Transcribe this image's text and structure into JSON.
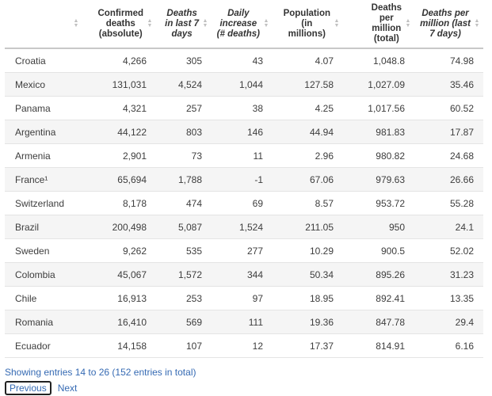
{
  "table": {
    "headers": [
      {
        "label": "",
        "italic": false
      },
      {
        "label": "Confirmed\ndeaths\n(absolute)",
        "italic": false
      },
      {
        "label": "Deaths\nin last 7\ndays",
        "italic": true
      },
      {
        "label": "Daily\nincrease\n(# deaths)",
        "italic": true
      },
      {
        "label": "Population\n(in\nmillions)",
        "italic": false
      },
      {
        "label": "Deaths\nper\nmillion\n(total)",
        "italic": false
      },
      {
        "label": "Deaths per\nmillion (last\n7 days)",
        "italic": true
      }
    ],
    "rows": [
      [
        "Croatia",
        "4,266",
        "305",
        "43",
        "4.07",
        "1,048.8",
        "74.98"
      ],
      [
        "Mexico",
        "131,031",
        "4,524",
        "1,044",
        "127.58",
        "1,027.09",
        "35.46"
      ],
      [
        "Panama",
        "4,321",
        "257",
        "38",
        "4.25",
        "1,017.56",
        "60.52"
      ],
      [
        "Argentina",
        "44,122",
        "803",
        "146",
        "44.94",
        "981.83",
        "17.87"
      ],
      [
        "Armenia",
        "2,901",
        "73",
        "11",
        "2.96",
        "980.82",
        "24.68"
      ],
      [
        "France¹",
        "65,694",
        "1,788",
        "-1",
        "67.06",
        "979.63",
        "26.66"
      ],
      [
        "Switzerland",
        "8,178",
        "474",
        "69",
        "8.57",
        "953.72",
        "55.28"
      ],
      [
        "Brazil",
        "200,498",
        "5,087",
        "1,524",
        "211.05",
        "950",
        "24.1"
      ],
      [
        "Sweden",
        "9,262",
        "535",
        "277",
        "10.29",
        "900.5",
        "52.02"
      ],
      [
        "Colombia",
        "45,067",
        "1,572",
        "344",
        "50.34",
        "895.26",
        "31.23"
      ],
      [
        "Chile",
        "16,913",
        "253",
        "97",
        "18.95",
        "892.41",
        "13.35"
      ],
      [
        "Romania",
        "16,410",
        "569",
        "111",
        "19.36",
        "847.78",
        "29.4"
      ],
      [
        "Ecuador",
        "14,158",
        "107",
        "12",
        "17.37",
        "814.91",
        "6.16"
      ]
    ]
  },
  "footer": {
    "info": "Showing entries 14 to 26 (152 entries in total)",
    "previous_label": "Previous",
    "next_label": "Next"
  },
  "colors": {
    "link": "#356ab3",
    "alt_row": "#f5f5f5",
    "border": "#e4e4e4"
  }
}
